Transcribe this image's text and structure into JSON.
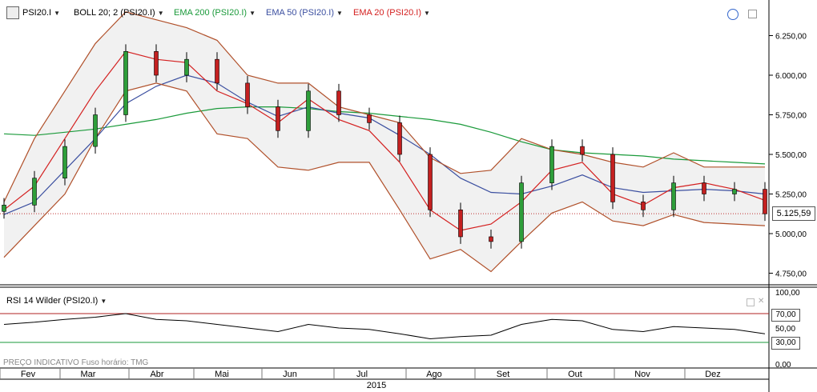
{
  "toolbar": {
    "symbol": "PSI20.I",
    "indicators": [
      {
        "label": "BOLL 20; 2 (PSI20.I)",
        "color": "#000000"
      },
      {
        "label": "EMA 200 (PSI20.I)",
        "color": "#1a9a3a"
      },
      {
        "label": "EMA 50 (PSI20.I)",
        "color": "#3b4fa0"
      },
      {
        "label": "EMA 20 (PSI20.I)",
        "color": "#d42020"
      }
    ]
  },
  "price_axis": [
    "6.250,00",
    "6.000,00",
    "5.750,00",
    "5.500,00",
    "5.250,00",
    "5.000,00",
    "4.750,00"
  ],
  "current_price": "5.125,59",
  "rsi": {
    "title": "RSI 14 Wilder (PSI20.I)",
    "axis": [
      "100,00",
      "50,00",
      "0,00"
    ],
    "upper_box": "70,00",
    "lower_box": "30,00"
  },
  "footer": {
    "note": "PREÇO INDICATIVO   Fuso horário: TMG",
    "year": "2015"
  },
  "months": [
    "Fev",
    "Mar",
    "Abr",
    "Mai",
    "Jun",
    "Jul",
    "Ago",
    "Set",
    "Out",
    "Nov",
    "Dez"
  ],
  "chart_data": {
    "type": "candlestick",
    "price_range": [
      4700,
      6400
    ],
    "series": [
      {
        "name": "EMA 200",
        "color": "#1a9a3a",
        "values": [
          5630,
          5620,
          5640,
          5660,
          5690,
          5720,
          5760,
          5790,
          5800,
          5800,
          5790,
          5770,
          5760,
          5740,
          5720,
          5690,
          5640,
          5580,
          5530,
          5510,
          5500,
          5490,
          5470,
          5460,
          5450,
          5440
        ]
      },
      {
        "name": "EMA 50",
        "color": "#3b4fa0",
        "values": [
          5120,
          5200,
          5400,
          5600,
          5820,
          5930,
          6000,
          5950,
          5830,
          5740,
          5800,
          5760,
          5730,
          5620,
          5500,
          5350,
          5260,
          5250,
          5300,
          5370,
          5290,
          5260,
          5270,
          5280,
          5270,
          5250
        ]
      },
      {
        "name": "EMA 20",
        "color": "#d42020",
        "values": [
          5150,
          5300,
          5600,
          5900,
          6150,
          6100,
          6080,
          5900,
          5820,
          5700,
          5850,
          5720,
          5650,
          5450,
          5150,
          5020,
          5060,
          5200,
          5400,
          5450,
          5250,
          5180,
          5290,
          5320,
          5280,
          5210
        ]
      },
      {
        "name": "BOLL upper",
        "color": "#b0502a",
        "values": [
          5200,
          5600,
          5900,
          6200,
          6400,
          6350,
          6300,
          6220,
          6000,
          5950,
          5950,
          5800,
          5750,
          5700,
          5480,
          5380,
          5400,
          5600,
          5530,
          5500,
          5450,
          5420,
          5510,
          5420,
          5420,
          5420
        ]
      },
      {
        "name": "BOLL lower",
        "color": "#b0502a",
        "values": [
          4850,
          5050,
          5250,
          5600,
          5900,
          5950,
          5900,
          5630,
          5600,
          5420,
          5400,
          5450,
          5450,
          5150,
          4840,
          4900,
          4760,
          4950,
          5130,
          5200,
          5080,
          5050,
          5120,
          5070,
          5060,
          5050
        ]
      }
    ],
    "close": [
      5180,
      5350,
      5550,
      5750,
      6150,
      6000,
      6100,
      5950,
      5800,
      5650,
      5900,
      5750,
      5700,
      5500,
      5150,
      4980,
      4950,
      5320,
      5550,
      5500,
      5200,
      5150,
      5320,
      5250,
      5280,
      5125
    ],
    "rsi_values": [
      55,
      58,
      62,
      65,
      70,
      62,
      60,
      55,
      50,
      45,
      55,
      50,
      48,
      42,
      35,
      38,
      40,
      55,
      62,
      60,
      48,
      45,
      52,
      50,
      48,
      42
    ],
    "rsi_levels": [
      70,
      30
    ]
  }
}
